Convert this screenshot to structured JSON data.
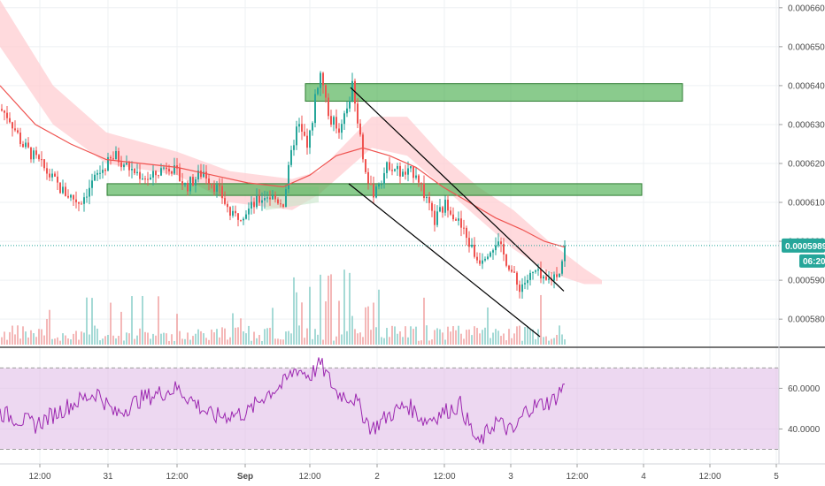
{
  "chart_data": [
    {
      "type": "candlestick",
      "pane": "price",
      "y_ticks": [
        "0.0006600",
        "0.0006500",
        "0.0006400",
        "0.0006300",
        "0.0006200",
        "0.0006100",
        "0.0006000",
        "0.0005900",
        "0.0005800"
      ],
      "ylim": [
        0.000573,
        0.000662
      ],
      "x_ticks": [
        "12:00",
        "31",
        "12:00",
        "Sep",
        "12:00",
        "2",
        "12:00",
        "3",
        "12:00",
        "4",
        "12:00",
        "5"
      ],
      "price_tag": {
        "value": "0.0005989",
        "color": "#26a69a"
      },
      "countdown": "06:20",
      "control_points": [
        [
          0,
          0.000634
        ],
        [
          10,
          0.000632
        ],
        [
          25,
          0.000625
        ],
        [
          45,
          0.00062
        ],
        [
          70,
          0.000613
        ],
        [
          90,
          0.00061
        ],
        [
          110,
          0.000617
        ],
        [
          130,
          0.000622
        ],
        [
          150,
          0.000618
        ],
        [
          170,
          0.000616
        ],
        [
          190,
          0.00062
        ],
        [
          210,
          0.000614
        ],
        [
          230,
          0.000618
        ],
        [
          250,
          0.000612
        ],
        [
          262,
          0.000606
        ],
        [
          280,
          0.000608
        ],
        [
          300,
          0.000612
        ],
        [
          320,
          0.00061
        ],
        [
          335,
          0.00063
        ],
        [
          348,
          0.000625
        ],
        [
          362,
          0.000645
        ],
        [
          372,
          0.000632
        ],
        [
          385,
          0.000628
        ],
        [
          398,
          0.00064
        ],
        [
          410,
          0.000622
        ],
        [
          420,
          0.000612
        ],
        [
          440,
          0.00062
        ],
        [
          455,
          0.000617
        ],
        [
          470,
          0.000618
        ],
        [
          490,
          0.000605
        ],
        [
          505,
          0.00061
        ],
        [
          520,
          0.000604
        ],
        [
          540,
          0.000595
        ],
        [
          560,
          0.0006
        ],
        [
          575,
          0.000594
        ],
        [
          585,
          0.000588
        ],
        [
          595,
          0.00059
        ],
        [
          605,
          0.000592
        ],
        [
          615,
          0.000589
        ],
        [
          625,
          0.000591
        ],
        [
          633,
          0.000593
        ],
        [
          638,
          0.0005989
        ]
      ],
      "ma_line": {
        "color": "#ef5350",
        "points": [
          [
            0,
            0.00064
          ],
          [
            40,
            0.00063
          ],
          [
            80,
            0.000625
          ],
          [
            120,
            0.000621
          ],
          [
            160,
            0.00062
          ],
          [
            200,
            0.000619
          ],
          [
            240,
            0.000617
          ],
          [
            280,
            0.000615
          ],
          [
            320,
            0.000614
          ],
          [
            350,
            0.000617
          ],
          [
            380,
            0.000622
          ],
          [
            410,
            0.000624
          ],
          [
            440,
            0.000622
          ],
          [
            470,
            0.000619
          ],
          [
            500,
            0.000614
          ],
          [
            530,
            0.00061
          ],
          [
            560,
            0.000606
          ],
          [
            590,
            0.000603
          ],
          [
            615,
            0.0006
          ],
          [
            638,
            0.0005985
          ]
        ]
      },
      "rectangles": [
        {
          "x1": 345,
          "x2": 771,
          "y1": 0.000636,
          "y2": 0.0006405,
          "fill": "#4caf50"
        },
        {
          "x1": 121,
          "x2": 725,
          "y1": 0.0006118,
          "y2": 0.0006148,
          "fill": "#4caf50"
        }
      ],
      "trend_lines": [
        {
          "x1": 396,
          "y1": 0.0006395,
          "x2": 637,
          "y2": 0.0005872,
          "color": "#000000"
        },
        {
          "x1": 394,
          "y1": 0.0006148,
          "x2": 610,
          "y2": 0.0005755,
          "color": "#000000"
        }
      ]
    },
    {
      "type": "line",
      "pane": "oscillator",
      "y_ticks": [
        "60.0000",
        "40.0000"
      ],
      "ylim": [
        25,
        78
      ],
      "band": [
        70,
        30
      ],
      "line_color": "#9c27b0",
      "band_color": "#e1bee7"
    }
  ]
}
